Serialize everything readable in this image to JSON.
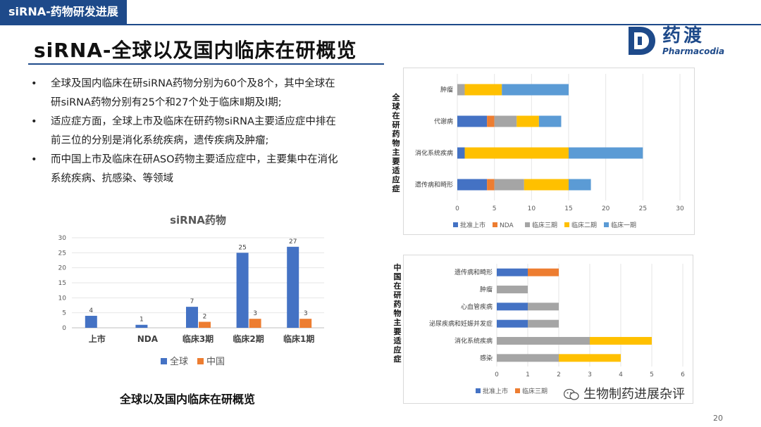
{
  "header": {
    "section_tag": "siRNA-药物研发进展",
    "title": "siRNA-全球以及国内临床在研概览"
  },
  "logo": {
    "cn": "药渡",
    "en": "Pharmacodia"
  },
  "bullets": [
    "全球及国内临床在研siRNA药物分别为60个及8个，其中全球在研siRNA药物分别有25个和27个处于临床Ⅱ期及Ⅰ期;",
    "适应症方面，全球上市及临床在研药物siRNA主要适应症中排在前三位的分别是消化系统疾病，遗传疾病及肿瘤;",
    "而中国上市及临床在研ASO药物主要适应症中，主要集中在消化系统疾病、抗感染、等领域"
  ],
  "bullet_marker": "•",
  "caption": "全球以及国内临床在研概览",
  "footer": {
    "wechat": "生物制药进展杂评",
    "page": "20"
  },
  "colors": {
    "blue": "#4472c4",
    "orange": "#ed7d31",
    "gray": "#a5a5a5",
    "yellow": "#ffc000",
    "lightblue": "#5b9bd5",
    "brand": "#1e4a8a"
  },
  "global_label": "全球在研药物主要适应症",
  "china_label": "中国在研药物主要适应症",
  "chart_data": [
    {
      "type": "bar",
      "title": "siRNA药物",
      "categories": [
        "上市",
        "NDA",
        "临床3期",
        "临床2期",
        "临床1期"
      ],
      "series": [
        {
          "name": "全球",
          "values": [
            4,
            1,
            7,
            25,
            27
          ],
          "color": "#4472c4"
        },
        {
          "name": "中国",
          "values": [
            0,
            0,
            2,
            3,
            3
          ],
          "color": "#ed7d31"
        }
      ],
      "data_labels": [
        [
          "4",
          "1",
          "7",
          "25",
          "27"
        ],
        [
          "",
          "",
          "2",
          "3",
          "3"
        ]
      ],
      "ylim": [
        0,
        30
      ],
      "yticks": [
        0,
        5,
        10,
        15,
        20,
        25,
        30
      ],
      "legend": "bottom"
    },
    {
      "type": "bar",
      "orientation": "horizontal",
      "stacked": true,
      "categories": [
        "肿瘤",
        "代谢病",
        "消化系统疾病",
        "遗传病和畸形"
      ],
      "series": [
        {
          "name": "批准上市",
          "values": [
            0,
            4,
            1,
            4
          ],
          "color": "#4472c4"
        },
        {
          "name": "NDA",
          "values": [
            0,
            1,
            0,
            1
          ],
          "color": "#ed7d31"
        },
        {
          "name": "临床三期",
          "values": [
            1,
            3,
            0,
            4
          ],
          "color": "#a5a5a5"
        },
        {
          "name": "临床二期",
          "values": [
            5,
            3,
            14,
            6
          ],
          "color": "#ffc000"
        },
        {
          "name": "临床一期",
          "values": [
            9,
            3,
            10,
            3
          ],
          "color": "#5b9bd5"
        }
      ],
      "xlim": [
        0,
        30
      ],
      "xticks": [
        0,
        5,
        10,
        15,
        20,
        25,
        30
      ],
      "legend": "bottom"
    },
    {
      "type": "bar",
      "orientation": "horizontal",
      "stacked": true,
      "categories": [
        "遗传病和畸形",
        "肿瘤",
        "心血管疾病",
        "泌尿疾病和妊娠并发症",
        "消化系统疾病",
        "感染"
      ],
      "series": [
        {
          "name": "批准上市",
          "values": [
            1,
            0,
            1,
            1,
            0,
            0
          ],
          "color": "#4472c4"
        },
        {
          "name": "临床三期",
          "values": [
            1,
            0,
            0,
            0,
            0,
            0
          ],
          "color": "#ed7d31"
        },
        {
          "name": "",
          "values": [
            0,
            1,
            1,
            1,
            3,
            2
          ],
          "color": "#a5a5a5"
        },
        {
          "name": "",
          "values": [
            0,
            0,
            0,
            0,
            2,
            2
          ],
          "color": "#ffc000"
        }
      ],
      "xlim": [
        0,
        6
      ],
      "xticks": [
        0,
        1,
        2,
        3,
        4,
        5,
        6
      ],
      "legend": "bottom"
    }
  ]
}
